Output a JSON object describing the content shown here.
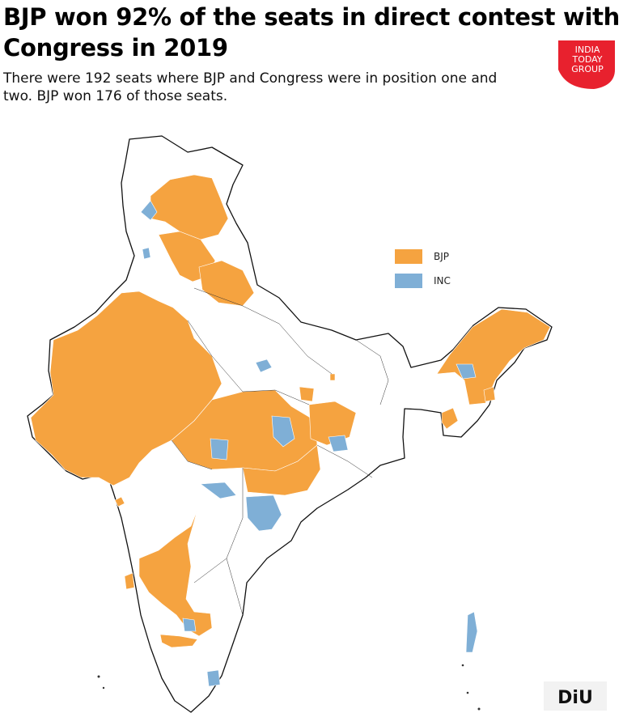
{
  "title": "BJP won 92% of the seats in direct contest with Congress in 2019",
  "subtitle": "There were 192 seats where BJP and Congress were in position one and two. BJP won 176 of those seats.",
  "logo": {
    "line1": "INDIA",
    "line2": "TODAY",
    "line3": "GROUP",
    "color": "#e8212e"
  },
  "legend": [
    {
      "label": "BJP",
      "color": "#f5a340"
    },
    {
      "label": "INC",
      "color": "#7fafd6"
    }
  ],
  "colors": {
    "bjp": "#f5a340",
    "inc": "#7fafd6",
    "outline": "#111111",
    "inner": "#ffffff"
  },
  "footer_logo": {
    "text": "DiU"
  }
}
